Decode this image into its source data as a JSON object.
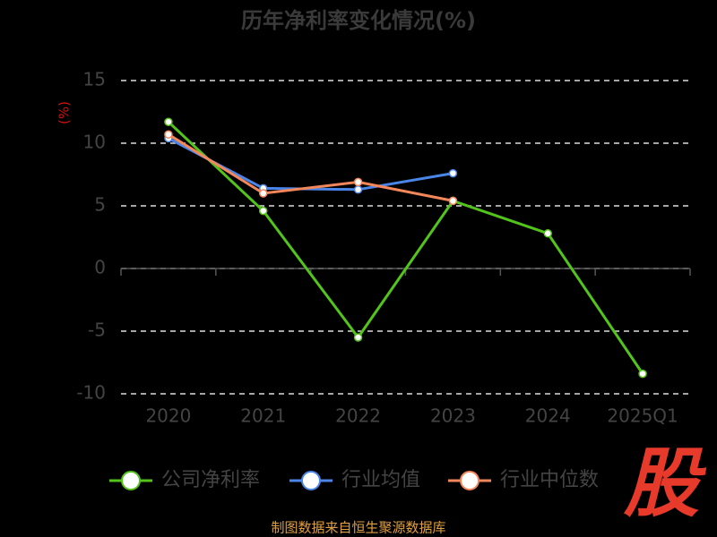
{
  "chart_data": {
    "type": "line",
    "title": "历年净利率变化情况(%)",
    "y_label": "(%)",
    "categories": [
      "2020",
      "2021",
      "2022",
      "2023",
      "2024",
      "2025Q1"
    ],
    "series": [
      {
        "name": "公司净利率",
        "color": "#52c41a",
        "values": [
          11.7,
          4.6,
          -5.5,
          5.4,
          2.8,
          -8.4
        ]
      },
      {
        "name": "行业均值",
        "color": "#4a86e8",
        "values": [
          10.4,
          6.4,
          6.3,
          7.6,
          null,
          null
        ]
      },
      {
        "name": "行业中位数",
        "color": "#f4875a",
        "values": [
          10.7,
          6.0,
          6.9,
          5.4,
          null,
          null
        ]
      }
    ],
    "ylim": [
      -10,
      15
    ],
    "yticks": [
      -10,
      -5,
      0,
      5,
      10,
      15
    ],
    "grid": true,
    "legend": "bottom",
    "source": "制图数据来自恒生聚源数据库",
    "logo": "股"
  }
}
